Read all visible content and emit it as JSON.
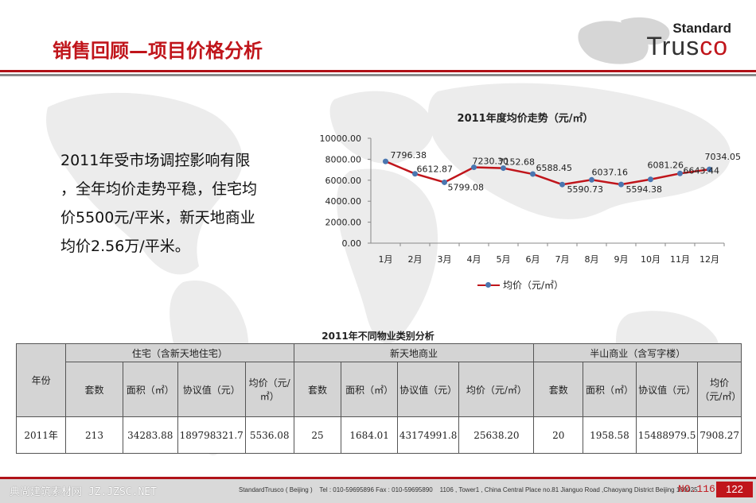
{
  "header": {
    "title": "销售回顾—项目价格分析",
    "logo_line1": "Standard",
    "logo_line2_a": "Trus",
    "logo_line2_b": "co"
  },
  "summary": {
    "lines": [
      "2011年受市场调控影响有限",
      "，全年均价走势平稳，住宅均",
      "价5500元/平米，新天地商业",
      "均价2.56万/平米。"
    ]
  },
  "chart_data": {
    "type": "line",
    "title": "2011年度均价走势（元/㎡）",
    "categories": [
      "1月",
      "2月",
      "3月",
      "4月",
      "5月",
      "6月",
      "7月",
      "8月",
      "9月",
      "10月",
      "11月",
      "12月"
    ],
    "series": [
      {
        "name": "均价（元/㎡）",
        "values": [
          7796.38,
          6612.87,
          5799.08,
          7230.3,
          7152.68,
          6588.45,
          5590.73,
          6037.16,
          5594.38,
          6081.26,
          6643.44,
          7034.05
        ]
      }
    ],
    "data_labels": [
      "7796.38",
      "6612.87",
      "5799.08",
      "7230.30",
      "7152.68",
      "6588.45",
      "5590.73",
      "6037.16",
      "5594.38",
      "6081.26",
      "6643.44",
      "7034.05"
    ],
    "y_ticks": [
      "0.00",
      "2000.00",
      "4000.00",
      "6000.00",
      "8000.00",
      "10000.00"
    ],
    "ylim": [
      0,
      10000
    ],
    "grid": false,
    "legend": "bottom",
    "line_color": "#c0151b",
    "marker_color": "#4a76b0"
  },
  "table": {
    "title": "2011年不同物业类别分析",
    "year_header": "年份",
    "groups": [
      "住宅（含新天地住宅）",
      "新天地商业",
      "半山商业（含写字楼）"
    ],
    "sub_headers": [
      "套数",
      "面积（㎡）",
      "协议值（元）",
      "均价（元/㎡）"
    ],
    "sub_headers_group2": [
      "套数",
      "面积（㎡）",
      "协议值（元）",
      "均价（元/㎡）"
    ],
    "rows": [
      {
        "year": "2011年",
        "cells": [
          "213",
          "34283.88",
          "189798321.7",
          "5536.08",
          "25",
          "1684.01",
          "43174991.8",
          "25638.20",
          "20",
          "1958.58",
          "15488979.5",
          "7908.27"
        ]
      }
    ]
  },
  "footer": {
    "watermark": "典尚建筑素材网 JZ.JZSC.NET",
    "company": "StandardTrusco ( Beijing )",
    "tel": "Tel : 010-59695896  Fax : 010-59695890",
    "address": "1106 , Tower1 , China Central Place no.81 Jianguo Road ,Chaoyang District Beijing 100025",
    "page_label": "NO.116",
    "page_number": "122"
  },
  "colors": {
    "accent": "#c0151b",
    "header_gray": "#d4d4d4"
  }
}
